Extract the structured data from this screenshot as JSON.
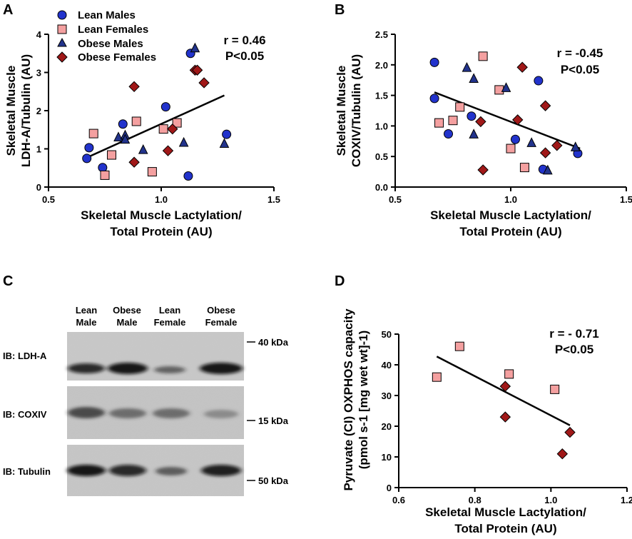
{
  "panels": {
    "A": "A",
    "B": "B",
    "C": "C",
    "D": "D"
  },
  "colors": {
    "lean_male": "#2233cc",
    "lean_female": "#f4a0a0",
    "obese_male": "#22338c",
    "obese_female": "#a01818",
    "line": "#000000"
  },
  "legend": [
    {
      "label": "Lean Males",
      "group": "lean_male"
    },
    {
      "label": "Lean Females",
      "group": "lean_female"
    },
    {
      "label": "Obese Males",
      "group": "obese_male"
    },
    {
      "label": "Obese Females",
      "group": "obese_female"
    }
  ],
  "chart_data": [
    {
      "id": "A",
      "type": "scatter",
      "ylabel_lines": [
        "Skeletal Muscle",
        "LDH-A/Tubulin (AU)"
      ],
      "xlabel_lines": [
        "Skeletal Muscle Lactylation/",
        "Total Protein (AU)"
      ],
      "xlim": [
        0.5,
        1.5
      ],
      "ylim": [
        0,
        4
      ],
      "xticks": [
        "0.5",
        "1.0",
        "1.5"
      ],
      "xtick_values": [
        0.5,
        1.0,
        1.5
      ],
      "yticks": [
        "0",
        "1",
        "2",
        "3",
        "4"
      ],
      "ytick_values": [
        0,
        1,
        2,
        3,
        4
      ],
      "stat_r": "r = 0.46",
      "stat_p": "P<0.05",
      "fit": {
        "x": [
          0.67,
          1.28
        ],
        "y": [
          0.77,
          2.4
        ]
      },
      "series": [
        {
          "name": "Lean Males",
          "group": "lean_male",
          "marker": "circle",
          "points": [
            [
              0.67,
              0.75
            ],
            [
              0.68,
              1.03
            ],
            [
              0.74,
              0.51
            ],
            [
              0.83,
              1.65
            ],
            [
              1.02,
              2.1
            ],
            [
              1.12,
              0.29
            ],
            [
              1.13,
              3.5
            ],
            [
              1.29,
              1.38
            ]
          ]
        },
        {
          "name": "Lean Females",
          "group": "lean_female",
          "marker": "square",
          "points": [
            [
              0.7,
              1.4
            ],
            [
              0.75,
              0.31
            ],
            [
              0.78,
              0.84
            ],
            [
              0.89,
              1.72
            ],
            [
              0.96,
              0.4
            ],
            [
              1.01,
              1.52
            ],
            [
              1.07,
              1.68
            ]
          ]
        },
        {
          "name": "Obese Males",
          "group": "obese_male",
          "marker": "triangle",
          "points": [
            [
              0.81,
              1.3
            ],
            [
              0.84,
              1.35
            ],
            [
              0.84,
              1.24
            ],
            [
              0.92,
              0.97
            ],
            [
              1.1,
              1.16
            ],
            [
              1.15,
              3.63
            ],
            [
              1.28,
              1.13
            ]
          ]
        },
        {
          "name": "Obese Females",
          "group": "obese_female",
          "marker": "diamond",
          "points": [
            [
              0.88,
              2.63
            ],
            [
              0.88,
              0.65
            ],
            [
              1.03,
              0.95
            ],
            [
              1.05,
              1.52
            ],
            [
              1.15,
              3.06
            ],
            [
              1.16,
              3.06
            ],
            [
              1.19,
              2.73
            ]
          ]
        }
      ]
    },
    {
      "id": "B",
      "type": "scatter",
      "ylabel_lines": [
        "Skeletal Muscle",
        "COXIV/Tubulin (AU)"
      ],
      "xlabel_lines": [
        "Skeletal Muscle Lactylation/",
        "Total Protein (AU)"
      ],
      "xlim": [
        0.5,
        1.5
      ],
      "ylim": [
        0,
        2.5
      ],
      "xticks": [
        "0.5",
        "1.0",
        "1.5"
      ],
      "xtick_values": [
        0.5,
        1.0,
        1.5
      ],
      "yticks": [
        "0.0",
        "0.5",
        "1.0",
        "1.5",
        "2.0",
        "2.5"
      ],
      "ytick_values": [
        0,
        0.5,
        1.0,
        1.5,
        2.0,
        2.5
      ],
      "stat_r": "r = -0.45",
      "stat_p": "P<0.05",
      "fit": {
        "x": [
          0.67,
          1.3
        ],
        "y": [
          1.55,
          0.63
        ]
      },
      "series": [
        {
          "name": "Lean Males",
          "group": "lean_male",
          "marker": "circle",
          "points": [
            [
              0.67,
              2.04
            ],
            [
              0.67,
              1.45
            ],
            [
              0.73,
              0.87
            ],
            [
              0.83,
              1.16
            ],
            [
              1.02,
              0.78
            ],
            [
              1.12,
              1.74
            ],
            [
              1.14,
              0.29
            ],
            [
              1.29,
              0.55
            ]
          ]
        },
        {
          "name": "Lean Females",
          "group": "lean_female",
          "marker": "square",
          "points": [
            [
              0.69,
              1.05
            ],
            [
              0.75,
              1.09
            ],
            [
              0.78,
              1.31
            ],
            [
              0.88,
              2.14
            ],
            [
              0.95,
              1.59
            ],
            [
              1.0,
              0.63
            ],
            [
              1.06,
              0.32
            ]
          ]
        },
        {
          "name": "Obese Males",
          "group": "obese_male",
          "marker": "triangle",
          "points": [
            [
              0.81,
              1.95
            ],
            [
              0.84,
              1.77
            ],
            [
              0.84,
              0.86
            ],
            [
              0.98,
              1.62
            ],
            [
              1.09,
              0.72
            ],
            [
              1.16,
              0.27
            ],
            [
              1.28,
              0.65
            ]
          ]
        },
        {
          "name": "Obese Females",
          "group": "obese_female",
          "marker": "diamond",
          "points": [
            [
              0.87,
              1.07
            ],
            [
              0.88,
              0.28
            ],
            [
              1.03,
              1.1
            ],
            [
              1.05,
              1.96
            ],
            [
              1.15,
              1.33
            ],
            [
              1.15,
              0.56
            ],
            [
              1.2,
              0.68
            ]
          ]
        }
      ]
    },
    {
      "id": "D",
      "type": "scatter",
      "ylabel_lines": [
        "Pyruvate (CI) OXPHOS capacity",
        "(pmol s-1 [mg wet wt]-1)"
      ],
      "xlabel_lines": [
        "Skeletal Muscle Lactylation/",
        "Total Protein (AU)"
      ],
      "xlim": [
        0.6,
        1.2
      ],
      "ylim": [
        0,
        50
      ],
      "xticks": [
        "0.6",
        "0.8",
        "1.0",
        "1.2"
      ],
      "xtick_values": [
        0.6,
        0.8,
        1.0,
        1.2
      ],
      "yticks": [
        "0",
        "10",
        "20",
        "30",
        "40",
        "50"
      ],
      "ytick_values": [
        0,
        10,
        20,
        30,
        40,
        50
      ],
      "stat_r": "r = - 0.71",
      "stat_p": "P<0.05",
      "fit": {
        "x": [
          0.7,
          1.05
        ],
        "y": [
          42.7,
          20.3
        ]
      },
      "series": [
        {
          "name": "Lean Females",
          "group": "lean_female",
          "marker": "square",
          "points": [
            [
              0.7,
              36
            ],
            [
              0.76,
              46
            ],
            [
              0.89,
              37
            ],
            [
              1.01,
              32
            ]
          ]
        },
        {
          "name": "Obese Females",
          "group": "obese_female",
          "marker": "diamond",
          "points": [
            [
              0.88,
              33
            ],
            [
              0.88,
              23
            ],
            [
              1.03,
              11
            ],
            [
              1.05,
              18
            ]
          ]
        }
      ]
    }
  ],
  "blot": {
    "lanes": [
      {
        "line1": "Lean",
        "line2": "Male"
      },
      {
        "line1": "Obese",
        "line2": "Male"
      },
      {
        "line1": "Lean",
        "line2": "Female"
      },
      {
        "line1": "Obese",
        "line2": "Female"
      }
    ],
    "rows": [
      {
        "label": "IB: LDH-A",
        "band_intensity": [
          0.85,
          0.95,
          0.45,
          0.95
        ]
      },
      {
        "label": "IB: COXIV",
        "band_intensity": [
          0.75,
          0.6,
          0.6,
          0.4
        ]
      },
      {
        "label": "IB: Tubulin",
        "band_intensity": [
          0.95,
          0.85,
          0.6,
          0.9
        ]
      }
    ],
    "markers": [
      "40 kDa",
      "15 kDa",
      "50 kDa"
    ]
  }
}
